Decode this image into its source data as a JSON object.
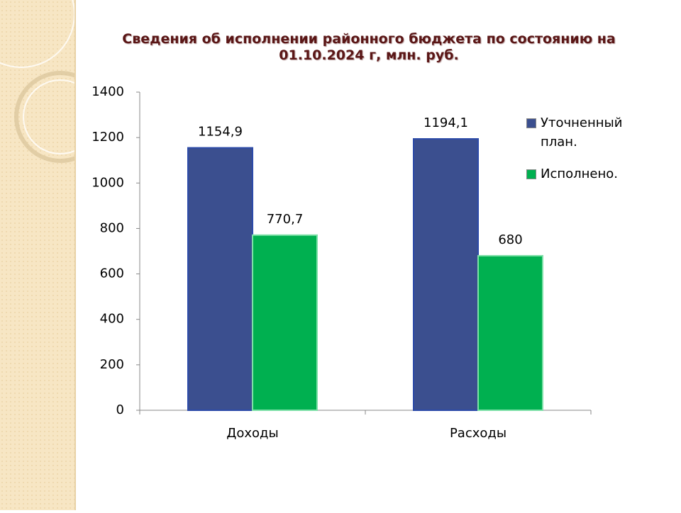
{
  "chart_data": {
    "type": "bar",
    "title": "Сведения об исполнении районного бюджета по состоянию на 01.10.2024 г, млн. руб.",
    "categories": [
      "Доходы",
      "Расходы"
    ],
    "series": [
      {
        "name": "Уточненный план.",
        "color": "#3b4f8f",
        "values": [
          1154.9,
          1194.1
        ],
        "value_labels": [
          "1154,9",
          "1194,1"
        ]
      },
      {
        "name": "Исполнено.",
        "color": "#00b050",
        "values": [
          770.7,
          680
        ],
        "value_labels": [
          "770,7",
          "680"
        ]
      }
    ],
    "ylim": [
      0,
      1400
    ],
    "yticks": [
      0,
      200,
      400,
      600,
      800,
      1000,
      1200,
      1400
    ],
    "legend": "right"
  }
}
